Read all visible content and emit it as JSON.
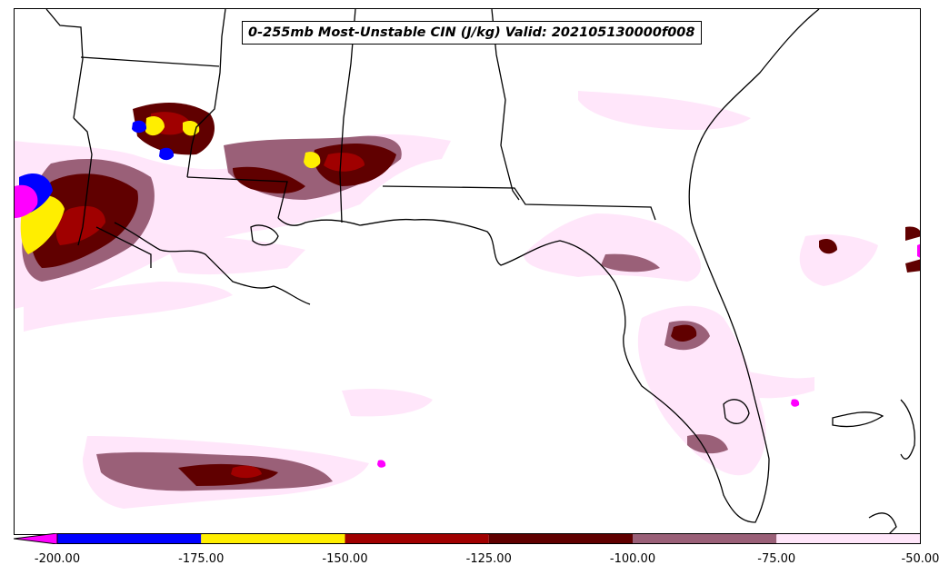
{
  "title": "0-255mb Most-Unstable CIN (J/kg) Valid: 202105130000f008",
  "colorbar": {
    "ticks": [
      "-200.00",
      "-175.00",
      "-150.00",
      "-125.00",
      "-100.00",
      "-75.00",
      "-50.00"
    ],
    "bins": [
      {
        "from": -200,
        "to": -175,
        "color": "#0000ff"
      },
      {
        "from": -175,
        "to": -150,
        "color": "#ffee00"
      },
      {
        "from": -150,
        "to": -125,
        "color": "#a00000"
      },
      {
        "from": -125,
        "to": -100,
        "color": "#600000"
      },
      {
        "from": -100,
        "to": -75,
        "color": "#9a6078"
      },
      {
        "from": -75,
        "to": -50,
        "color": "#ffe6fa"
      }
    ],
    "under_color": "#ff00ff"
  }
}
